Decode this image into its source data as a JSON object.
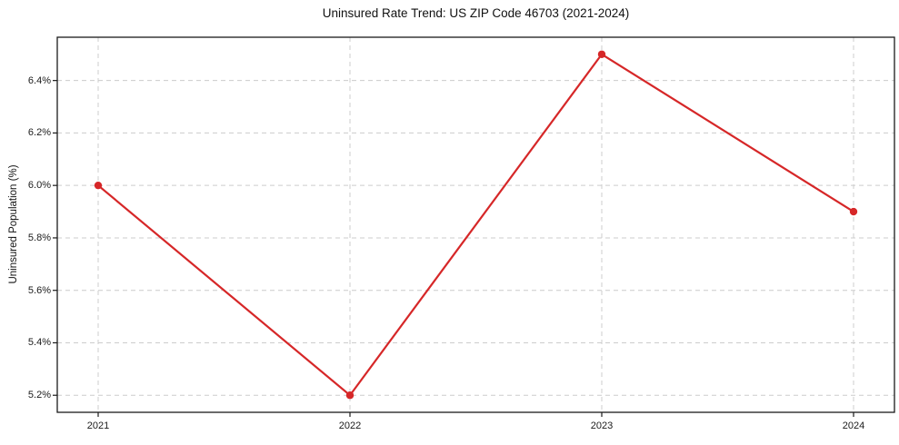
{
  "chart_data": {
    "type": "line",
    "title": "Uninsured Rate Trend: US ZIP Code 46703 (2021-2024)",
    "xlabel": "",
    "ylabel": "Uninsured Population (%)",
    "categories": [
      "2021",
      "2022",
      "2023",
      "2024"
    ],
    "values": [
      6.0,
      5.2,
      6.5,
      5.9
    ],
    "yticks": {
      "values": [
        5.2,
        5.4,
        5.6,
        5.8,
        6.0,
        6.2,
        6.4
      ],
      "labels": [
        "5.2%",
        "5.4%",
        "5.6%",
        "5.8%",
        "6.0%",
        "6.2%",
        "6.4%"
      ]
    },
    "ylim": [
      5.135,
      6.565
    ],
    "grid": true,
    "grid_style": "dashed",
    "legend": false,
    "line_color": "#d62728",
    "grid_color": "#cccccc",
    "axis_color": "#1a1a1a",
    "marker": "circle"
  }
}
